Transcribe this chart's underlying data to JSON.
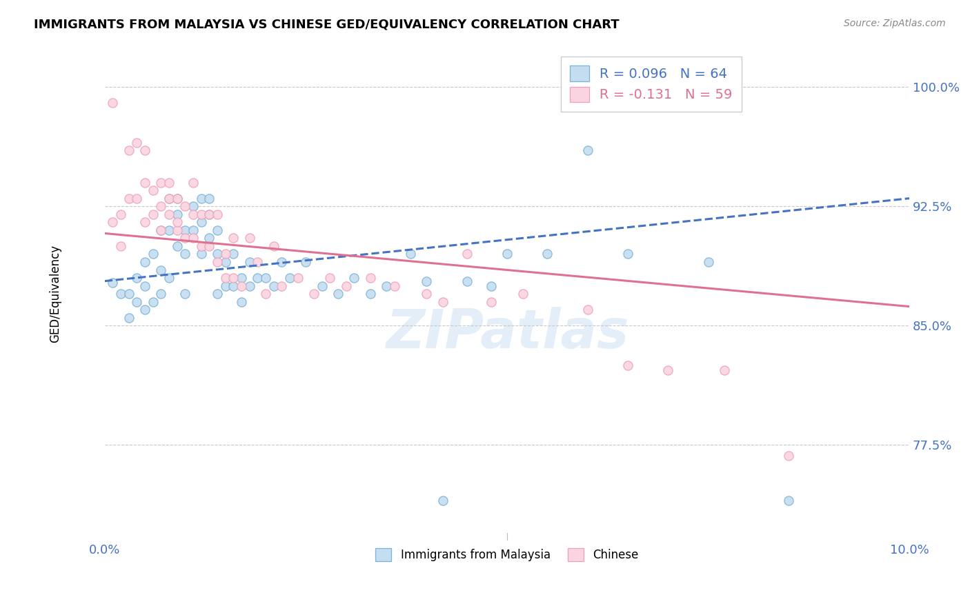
{
  "title": "IMMIGRANTS FROM MALAYSIA VS CHINESE GED/EQUIVALENCY CORRELATION CHART",
  "source": "Source: ZipAtlas.com",
  "ylabel": "GED/Equivalency",
  "xlim": [
    0.0,
    0.1
  ],
  "ylim": [
    0.715,
    1.025
  ],
  "yticks": [
    0.775,
    0.85,
    0.925,
    1.0
  ],
  "ytick_labels": [
    "77.5%",
    "85.0%",
    "92.5%",
    "100.0%"
  ],
  "xticks": [
    0.0,
    0.02,
    0.04,
    0.06,
    0.08,
    0.1
  ],
  "xtick_labels": [
    "0.0%",
    "",
    "",
    "",
    "",
    "10.0%"
  ],
  "blue_color": "#7ab3d9",
  "blue_fill": "#c5ddf0",
  "pink_color": "#f0a0b8",
  "pink_fill": "#fad4e0",
  "trend_blue_color": "#4472c4",
  "trend_pink_color": "#e07090",
  "r_blue": 0.096,
  "n_blue": 64,
  "r_pink": -0.131,
  "n_pink": 59,
  "label_blue": "Immigrants from Malaysia",
  "label_pink": "Chinese",
  "axis_color": "#4472c4",
  "background_color": "#ffffff",
  "grid_color": "#c8c8c8",
  "blue_trend_y0": 0.878,
  "blue_trend_y1": 0.93,
  "pink_trend_y0": 0.908,
  "pink_trend_y1": 0.862,
  "blue_x": [
    0.001,
    0.002,
    0.003,
    0.003,
    0.004,
    0.004,
    0.005,
    0.005,
    0.005,
    0.006,
    0.006,
    0.007,
    0.007,
    0.007,
    0.008,
    0.008,
    0.008,
    0.009,
    0.009,
    0.009,
    0.01,
    0.01,
    0.01,
    0.011,
    0.011,
    0.012,
    0.012,
    0.012,
    0.013,
    0.013,
    0.013,
    0.014,
    0.014,
    0.014,
    0.015,
    0.015,
    0.016,
    0.016,
    0.017,
    0.017,
    0.018,
    0.018,
    0.019,
    0.02,
    0.021,
    0.022,
    0.023,
    0.025,
    0.027,
    0.029,
    0.031,
    0.033,
    0.035,
    0.038,
    0.04,
    0.042,
    0.045,
    0.048,
    0.05,
    0.055,
    0.06,
    0.065,
    0.075,
    0.085
  ],
  "blue_y": [
    0.877,
    0.87,
    0.87,
    0.855,
    0.88,
    0.865,
    0.89,
    0.875,
    0.86,
    0.895,
    0.865,
    0.91,
    0.885,
    0.87,
    0.93,
    0.91,
    0.88,
    0.93,
    0.92,
    0.9,
    0.91,
    0.895,
    0.87,
    0.925,
    0.91,
    0.93,
    0.915,
    0.895,
    0.93,
    0.92,
    0.905,
    0.91,
    0.895,
    0.87,
    0.89,
    0.875,
    0.895,
    0.875,
    0.88,
    0.865,
    0.89,
    0.875,
    0.88,
    0.88,
    0.875,
    0.89,
    0.88,
    0.89,
    0.875,
    0.87,
    0.88,
    0.87,
    0.875,
    0.895,
    0.878,
    0.74,
    0.878,
    0.875,
    0.895,
    0.895,
    0.96,
    0.895,
    0.89,
    0.74
  ],
  "pink_x": [
    0.001,
    0.001,
    0.002,
    0.002,
    0.003,
    0.003,
    0.004,
    0.004,
    0.005,
    0.005,
    0.005,
    0.006,
    0.006,
    0.007,
    0.007,
    0.007,
    0.008,
    0.008,
    0.008,
    0.009,
    0.009,
    0.009,
    0.01,
    0.01,
    0.011,
    0.011,
    0.011,
    0.012,
    0.012,
    0.013,
    0.013,
    0.014,
    0.014,
    0.015,
    0.015,
    0.016,
    0.016,
    0.017,
    0.018,
    0.019,
    0.02,
    0.021,
    0.022,
    0.024,
    0.026,
    0.028,
    0.03,
    0.033,
    0.036,
    0.04,
    0.042,
    0.045,
    0.048,
    0.052,
    0.06,
    0.065,
    0.07,
    0.077,
    0.085
  ],
  "pink_y": [
    0.99,
    0.915,
    0.92,
    0.9,
    0.96,
    0.93,
    0.965,
    0.93,
    0.96,
    0.94,
    0.915,
    0.935,
    0.92,
    0.94,
    0.925,
    0.91,
    0.94,
    0.93,
    0.92,
    0.93,
    0.91,
    0.915,
    0.925,
    0.905,
    0.94,
    0.92,
    0.905,
    0.92,
    0.9,
    0.92,
    0.9,
    0.92,
    0.89,
    0.895,
    0.88,
    0.905,
    0.88,
    0.875,
    0.905,
    0.89,
    0.87,
    0.9,
    0.875,
    0.88,
    0.87,
    0.88,
    0.875,
    0.88,
    0.875,
    0.87,
    0.865,
    0.895,
    0.865,
    0.87,
    0.86,
    0.825,
    0.822,
    0.822,
    0.768
  ]
}
